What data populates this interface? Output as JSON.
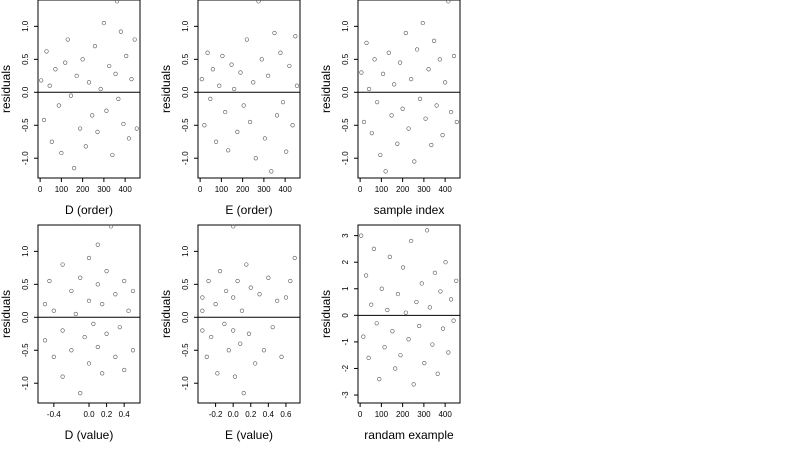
{
  "chart_data": [
    {
      "type": "scatter",
      "xlabel": "D (order)",
      "ylabel": "residuals",
      "xlim": [
        -10,
        470
      ],
      "ylim": [
        -1.3,
        1.4
      ],
      "xticks": [
        0,
        100,
        200,
        300,
        400
      ],
      "xtick_labels": [
        "0",
        "100",
        "200",
        "300",
        "400"
      ],
      "yticks": [
        -1.0,
        -0.5,
        0.0,
        0.5,
        1.0
      ],
      "ytick_labels": [
        "-1.0",
        "-0.5",
        "0.0",
        "0.5",
        "1.0"
      ],
      "hline": 0,
      "points": [
        [
          5,
          0.18
        ],
        [
          18,
          -0.42
        ],
        [
          30,
          0.62
        ],
        [
          45,
          0.1
        ],
        [
          55,
          -0.75
        ],
        [
          72,
          0.35
        ],
        [
          88,
          -0.2
        ],
        [
          100,
          -0.92
        ],
        [
          118,
          0.45
        ],
        [
          130,
          0.8
        ],
        [
          145,
          -0.05
        ],
        [
          160,
          -1.15
        ],
        [
          172,
          0.25
        ],
        [
          188,
          -0.55
        ],
        [
          200,
          0.5
        ],
        [
          215,
          -0.82
        ],
        [
          230,
          0.15
        ],
        [
          245,
          -0.35
        ],
        [
          258,
          0.7
        ],
        [
          270,
          -0.6
        ],
        [
          285,
          0.05
        ],
        [
          300,
          1.05
        ],
        [
          312,
          -0.28
        ],
        [
          325,
          0.4
        ],
        [
          340,
          -0.95
        ],
        [
          355,
          0.28
        ],
        [
          368,
          -0.1
        ],
        [
          380,
          0.92
        ],
        [
          392,
          -0.48
        ],
        [
          405,
          0.55
        ],
        [
          418,
          -0.7
        ],
        [
          430,
          0.2
        ],
        [
          445,
          0.8
        ],
        [
          455,
          -0.55
        ],
        [
          362,
          1.38
        ]
      ]
    },
    {
      "type": "scatter",
      "xlabel": "E (order)",
      "ylabel": "residuals",
      "xlim": [
        -10,
        470
      ],
      "ylim": [
        -1.3,
        1.4
      ],
      "xticks": [
        0,
        100,
        200,
        300,
        400
      ],
      "xtick_labels": [
        "0",
        "100",
        "200",
        "300",
        "400"
      ],
      "yticks": [
        -1.0,
        -0.5,
        0.0,
        0.5,
        1.0
      ],
      "ytick_labels": [
        "-1.0",
        "-0.5",
        "0.0",
        "0.5",
        "1.0"
      ],
      "hline": 0,
      "points": [
        [
          8,
          0.2
        ],
        [
          20,
          -0.5
        ],
        [
          35,
          0.6
        ],
        [
          48,
          -0.1
        ],
        [
          60,
          0.35
        ],
        [
          75,
          -0.75
        ],
        [
          90,
          0.1
        ],
        [
          105,
          0.55
        ],
        [
          118,
          -0.3
        ],
        [
          132,
          -0.88
        ],
        [
          148,
          0.42
        ],
        [
          160,
          0.05
        ],
        [
          175,
          -0.6
        ],
        [
          190,
          0.3
        ],
        [
          205,
          -0.2
        ],
        [
          220,
          0.8
        ],
        [
          235,
          -0.45
        ],
        [
          250,
          0.15
        ],
        [
          262,
          -1.0
        ],
        [
          275,
          1.38
        ],
        [
          290,
          0.5
        ],
        [
          305,
          -0.7
        ],
        [
          320,
          0.25
        ],
        [
          335,
          -1.2
        ],
        [
          350,
          0.9
        ],
        [
          362,
          -0.35
        ],
        [
          378,
          0.6
        ],
        [
          390,
          -0.15
        ],
        [
          405,
          -0.9
        ],
        [
          420,
          0.4
        ],
        [
          435,
          -0.5
        ],
        [
          448,
          0.85
        ],
        [
          456,
          0.1
        ]
      ]
    },
    {
      "type": "scatter",
      "xlabel": "sample index",
      "ylabel": "residuals",
      "xlim": [
        -10,
        470
      ],
      "ylim": [
        -1.3,
        1.4
      ],
      "xticks": [
        0,
        100,
        200,
        300,
        400
      ],
      "xtick_labels": [
        "0",
        "100",
        "200",
        "300",
        "400"
      ],
      "yticks": [
        -1.0,
        -0.5,
        0.0,
        0.5,
        1.0
      ],
      "ytick_labels": [
        "-1.0",
        "-0.5",
        "0.0",
        "0.5",
        "1.0"
      ],
      "hline": 0,
      "points": [
        [
          6,
          0.3
        ],
        [
          18,
          -0.45
        ],
        [
          30,
          0.75
        ],
        [
          42,
          0.05
        ],
        [
          55,
          -0.62
        ],
        [
          68,
          0.5
        ],
        [
          80,
          -0.15
        ],
        [
          95,
          -0.95
        ],
        [
          108,
          0.28
        ],
        [
          120,
          -1.2
        ],
        [
          135,
          0.6
        ],
        [
          148,
          -0.35
        ],
        [
          160,
          0.12
        ],
        [
          175,
          -0.78
        ],
        [
          188,
          0.45
        ],
        [
          200,
          -0.25
        ],
        [
          215,
          0.9
        ],
        [
          228,
          -0.55
        ],
        [
          240,
          0.2
        ],
        [
          255,
          -1.05
        ],
        [
          268,
          0.65
        ],
        [
          282,
          -0.1
        ],
        [
          295,
          1.05
        ],
        [
          308,
          -0.4
        ],
        [
          322,
          0.35
        ],
        [
          335,
          -0.8
        ],
        [
          348,
          0.78
        ],
        [
          360,
          -0.2
        ],
        [
          375,
          0.5
        ],
        [
          388,
          -0.65
        ],
        [
          400,
          0.15
        ],
        [
          415,
          1.38
        ],
        [
          428,
          -0.3
        ],
        [
          442,
          0.55
        ],
        [
          455,
          -0.45
        ]
      ]
    },
    {
      "type": "scatter",
      "xlabel": "D (value)",
      "ylabel": "residuals",
      "xlim": [
        -0.58,
        0.58
      ],
      "ylim": [
        -1.3,
        1.4
      ],
      "xticks": [
        -0.4,
        0.0,
        0.2,
        0.4
      ],
      "xtick_labels": [
        "-0.4",
        "0.0",
        "0.2",
        "0.4"
      ],
      "yticks": [
        -1.0,
        -0.5,
        0.0,
        0.5,
        1.0
      ],
      "ytick_labels": [
        "-1.0",
        "-0.5",
        "0.0",
        "0.5",
        "1.0"
      ],
      "hline": 0,
      "points": [
        [
          -0.5,
          0.2
        ],
        [
          -0.5,
          -0.35
        ],
        [
          -0.45,
          0.55
        ],
        [
          -0.4,
          -0.6
        ],
        [
          -0.4,
          0.1
        ],
        [
          -0.3,
          0.8
        ],
        [
          -0.3,
          -0.2
        ],
        [
          -0.3,
          -0.9
        ],
        [
          -0.2,
          0.4
        ],
        [
          -0.2,
          -0.5
        ],
        [
          -0.15,
          0.05
        ],
        [
          -0.1,
          -1.15
        ],
        [
          -0.1,
          0.6
        ],
        [
          -0.05,
          -0.3
        ],
        [
          0.0,
          0.25
        ],
        [
          0.0,
          -0.7
        ],
        [
          0.0,
          0.9
        ],
        [
          0.05,
          -0.1
        ],
        [
          0.1,
          0.5
        ],
        [
          0.1,
          -0.45
        ],
        [
          0.1,
          1.1
        ],
        [
          0.15,
          -0.85
        ],
        [
          0.15,
          0.2
        ],
        [
          0.2,
          -0.25
        ],
        [
          0.2,
          0.7
        ],
        [
          0.25,
          1.38
        ],
        [
          0.3,
          -0.6
        ],
        [
          0.3,
          0.35
        ],
        [
          0.35,
          -0.15
        ],
        [
          0.4,
          0.55
        ],
        [
          0.4,
          -0.8
        ],
        [
          0.45,
          0.1
        ],
        [
          0.5,
          0.4
        ],
        [
          0.5,
          -0.5
        ]
      ]
    },
    {
      "type": "scatter",
      "xlabel": "E (value)",
      "ylabel": "residuals",
      "xlim": [
        -0.4,
        0.76
      ],
      "ylim": [
        -1.3,
        1.4
      ],
      "xticks": [
        -0.2,
        0.0,
        0.2,
        0.4,
        0.6
      ],
      "xtick_labels": [
        "-0.2",
        "0.0",
        "0.2",
        "0.4",
        "0.6"
      ],
      "yticks": [
        -1.0,
        -0.5,
        0.0,
        0.5,
        1.0
      ],
      "ytick_labels": [
        "-1.0",
        "-0.5",
        "0.0",
        "0.5",
        "1.0"
      ],
      "hline": 0,
      "points": [
        [
          -0.35,
          0.3
        ],
        [
          -0.35,
          -0.2
        ],
        [
          -0.35,
          0.1
        ],
        [
          -0.3,
          -0.6
        ],
        [
          -0.28,
          0.55
        ],
        [
          -0.25,
          -0.3
        ],
        [
          -0.2,
          0.2
        ],
        [
          -0.18,
          -0.85
        ],
        [
          -0.15,
          0.7
        ],
        [
          -0.1,
          -0.1
        ],
        [
          -0.08,
          0.4
        ],
        [
          -0.05,
          -0.5
        ],
        [
          0.0,
          0.3
        ],
        [
          0.0,
          -0.2
        ],
        [
          0.0,
          1.38
        ],
        [
          0.02,
          -0.9
        ],
        [
          0.05,
          0.55
        ],
        [
          0.08,
          -0.4
        ],
        [
          0.1,
          0.1
        ],
        [
          0.12,
          -1.15
        ],
        [
          0.15,
          0.8
        ],
        [
          0.18,
          -0.25
        ],
        [
          0.2,
          0.45
        ],
        [
          0.25,
          -0.7
        ],
        [
          0.3,
          0.35
        ],
        [
          0.35,
          -0.5
        ],
        [
          0.4,
          0.6
        ],
        [
          0.45,
          -0.15
        ],
        [
          0.5,
          0.25
        ],
        [
          0.55,
          -0.6
        ],
        [
          0.6,
          0.3
        ],
        [
          0.65,
          0.55
        ],
        [
          0.7,
          0.9
        ]
      ]
    },
    {
      "type": "scatter",
      "xlabel": "randam example",
      "ylabel": "residuals",
      "xlim": [
        -10,
        470
      ],
      "ylim": [
        -3.3,
        3.4
      ],
      "xticks": [
        0,
        100,
        200,
        300,
        400
      ],
      "xtick_labels": [
        "0",
        "100",
        "200",
        "300",
        "400"
      ],
      "yticks": [
        -3,
        -2,
        -1,
        0,
        1,
        2,
        3
      ],
      "ytick_labels": [
        "-3",
        "-2",
        "-1",
        "0",
        "1",
        "2",
        "3"
      ],
      "hline": 0,
      "points": [
        [
          5,
          3.0
        ],
        [
          15,
          -0.8
        ],
        [
          28,
          1.5
        ],
        [
          40,
          -1.6
        ],
        [
          52,
          0.4
        ],
        [
          65,
          2.5
        ],
        [
          78,
          -0.3
        ],
        [
          90,
          -2.4
        ],
        [
          102,
          1.0
        ],
        [
          115,
          -1.2
        ],
        [
          128,
          0.2
        ],
        [
          140,
          2.2
        ],
        [
          152,
          -0.6
        ],
        [
          165,
          -2.0
        ],
        [
          178,
          0.8
        ],
        [
          190,
          -1.5
        ],
        [
          202,
          1.8
        ],
        [
          215,
          0.1
        ],
        [
          228,
          -0.9
        ],
        [
          240,
          2.8
        ],
        [
          252,
          -2.6
        ],
        [
          265,
          0.5
        ],
        [
          278,
          -0.4
        ],
        [
          290,
          1.2
        ],
        [
          302,
          -1.8
        ],
        [
          315,
          3.2
        ],
        [
          328,
          0.3
        ],
        [
          340,
          -1.1
        ],
        [
          352,
          1.6
        ],
        [
          365,
          -2.2
        ],
        [
          378,
          0.9
        ],
        [
          390,
          -0.5
        ],
        [
          402,
          2.0
        ],
        [
          415,
          -1.4
        ],
        [
          428,
          0.6
        ],
        [
          440,
          -0.2
        ],
        [
          452,
          1.3
        ]
      ]
    }
  ]
}
